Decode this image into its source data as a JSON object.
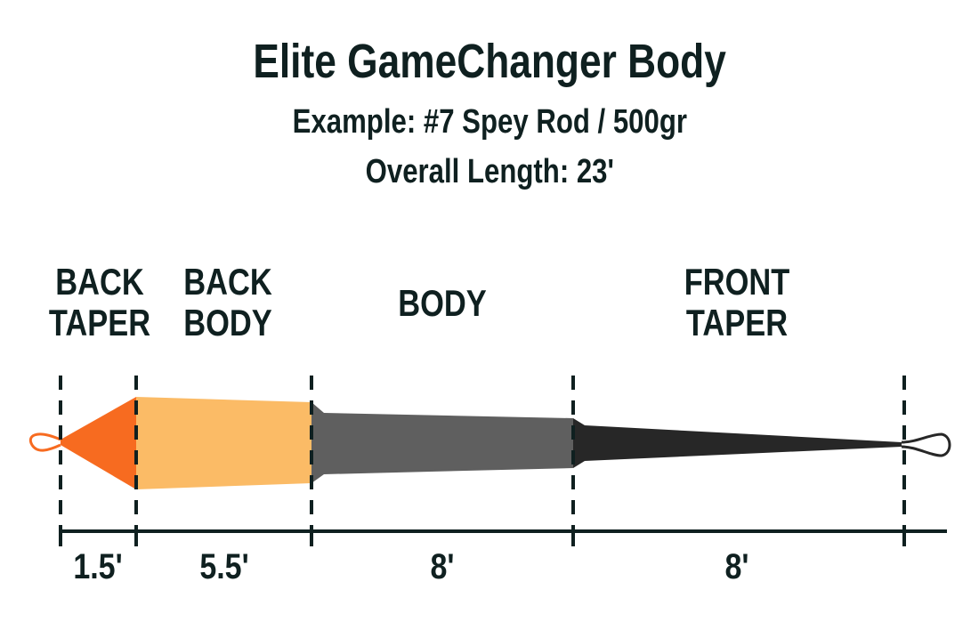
{
  "title": "Elite GameChanger Body",
  "subtitle": "Example: #7 Spey Rod / 500gr",
  "overall_length": "Overall Length: 23'",
  "sections": [
    {
      "label_line1": "BACK",
      "label_line2": "TAPER",
      "length": "1.5'",
      "color": "#f76b20"
    },
    {
      "label_line1": "BACK",
      "label_line2": "BODY",
      "length": "5.5'",
      "color": "#fbbb66"
    },
    {
      "label_line1": "BODY",
      "label_line2": "",
      "length": "8'",
      "color": "#5f5f5f"
    },
    {
      "label_line1": "FRONT",
      "label_line2": "TAPER",
      "length": "8'",
      "color": "#272727"
    }
  ],
  "text_color": "#0f2020"
}
